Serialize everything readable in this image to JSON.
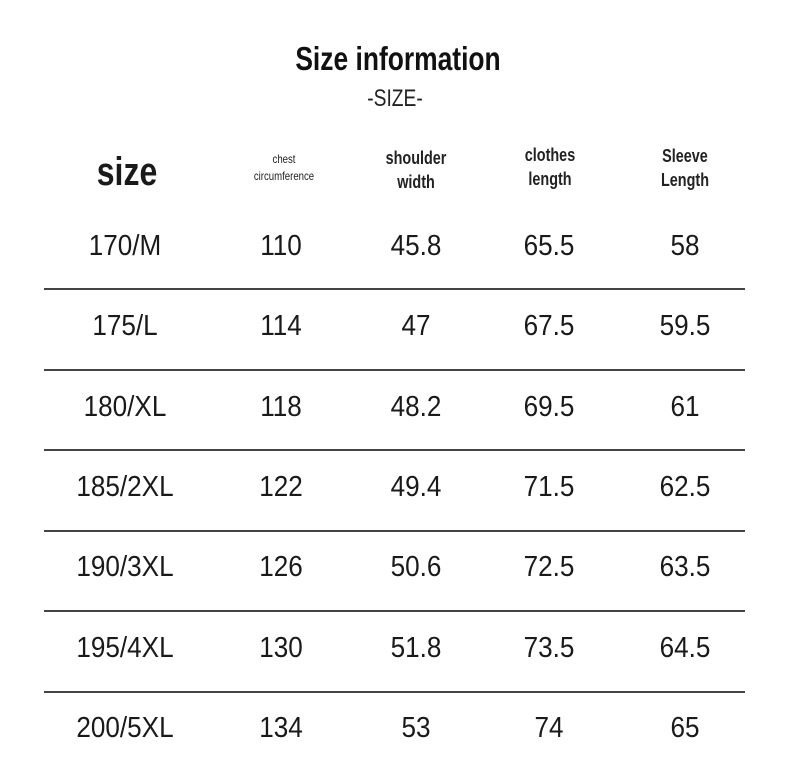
{
  "title": "Size information",
  "subtitle": "-SIZE-",
  "headers": [
    "size",
    "chest circumference",
    "shoulder width",
    "clothes length",
    "Sleeve Length"
  ],
  "header_lines": {
    "h1": [
      "chest",
      "circumference"
    ],
    "h2": [
      "shoulder",
      "width"
    ],
    "h3": [
      "clothes",
      "length"
    ],
    "h4": [
      "Sleeve",
      "Length"
    ]
  },
  "rows": [
    [
      "170/M",
      "110",
      "45.8",
      "65.5",
      "58"
    ],
    [
      "175/L",
      "114",
      "47",
      "67.5",
      "59.5"
    ],
    [
      "180/XL",
      "118",
      "48.2",
      "69.5",
      "61"
    ],
    [
      "185/2XL",
      "122",
      "49.4",
      "71.5",
      "62.5"
    ],
    [
      "190/3XL",
      "126",
      "50.6",
      "72.5",
      "63.5"
    ],
    [
      "195/4XL",
      "130",
      "51.8",
      "73.5",
      "64.5"
    ],
    [
      "200/5XL",
      "134",
      "53",
      "74",
      "65"
    ]
  ]
}
